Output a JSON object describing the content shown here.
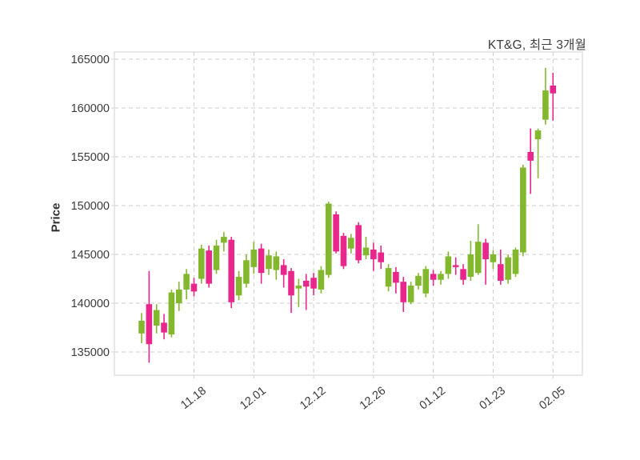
{
  "title": "KT&G, 최근 3개월",
  "chart_data": {
    "type": "candlestick",
    "title": "KT&G, 최근 3개월",
    "ylabel": "Price",
    "ylim": [
      133500,
      165800
    ],
    "yticks": [
      135000,
      140000,
      145000,
      150000,
      155000,
      160000,
      165000
    ],
    "xtick_labels": [
      "11.18",
      "12.01",
      "12.12",
      "12.26",
      "01.12",
      "01.23",
      "02.05"
    ],
    "xtick_indices": [
      7,
      15,
      23,
      31,
      39,
      47,
      55
    ],
    "grid": true,
    "legend": "none",
    "up_color": "#83b82e",
    "down_color": "#e8268c",
    "grid_color": "#cccccc",
    "spine_color": "#d9d9d9",
    "text_color": "#3b3b3b",
    "columns": [
      "open",
      "high",
      "low",
      "close"
    ],
    "ohlc": [
      [
        136900,
        139000,
        135900,
        138200
      ],
      [
        139900,
        143300,
        133900,
        135800
      ],
      [
        137700,
        139900,
        136900,
        139300
      ],
      [
        138000,
        138900,
        136300,
        137000
      ],
      [
        136800,
        141400,
        136500,
        141100
      ],
      [
        140000,
        142200,
        139200,
        141400
      ],
      [
        141400,
        143500,
        140400,
        143000
      ],
      [
        142000,
        142600,
        140700,
        141200
      ],
      [
        142500,
        146000,
        142000,
        145600
      ],
      [
        145400,
        145900,
        141600,
        142000
      ],
      [
        143400,
        146500,
        143000,
        145900
      ],
      [
        146200,
        147300,
        145300,
        146800
      ],
      [
        146500,
        146800,
        139500,
        140100
      ],
      [
        140800,
        143300,
        140300,
        142700
      ],
      [
        142000,
        145000,
        141600,
        144400
      ],
      [
        143700,
        146300,
        143000,
        145500
      ],
      [
        145600,
        146100,
        142000,
        143100
      ],
      [
        143500,
        145500,
        142900,
        144900
      ],
      [
        143400,
        145300,
        142400,
        144800
      ],
      [
        143900,
        144500,
        141600,
        142900
      ],
      [
        143300,
        143600,
        139000,
        140800
      ],
      [
        141500,
        142500,
        139600,
        141800
      ],
      [
        142300,
        143000,
        139300,
        141700
      ],
      [
        142600,
        143100,
        140800,
        141500
      ],
      [
        141400,
        143800,
        141000,
        143400
      ],
      [
        142900,
        150400,
        142600,
        150200
      ],
      [
        149100,
        149400,
        145100,
        145300
      ],
      [
        146900,
        147200,
        143500,
        143800
      ],
      [
        145600,
        147100,
        145100,
        146700
      ],
      [
        148000,
        148300,
        144100,
        144400
      ],
      [
        144900,
        146800,
        144500,
        145700
      ],
      [
        145500,
        146200,
        143300,
        144500
      ],
      [
        145200,
        145900,
        143500,
        144200
      ],
      [
        141700,
        144000,
        141200,
        143600
      ],
      [
        143200,
        143700,
        141000,
        142100
      ],
      [
        142200,
        142700,
        139100,
        140100
      ],
      [
        140100,
        142200,
        139900,
        141800
      ],
      [
        141800,
        143100,
        141400,
        142800
      ],
      [
        141000,
        143800,
        140600,
        143500
      ],
      [
        143000,
        143400,
        141800,
        142400
      ],
      [
        142400,
        143300,
        141900,
        143000
      ],
      [
        143000,
        145300,
        142500,
        144800
      ],
      [
        143900,
        144700,
        142900,
        143700
      ],
      [
        143500,
        144000,
        141900,
        142400
      ],
      [
        142700,
        146400,
        142300,
        145000
      ],
      [
        143100,
        148100,
        142900,
        146300
      ],
      [
        146200,
        146600,
        141900,
        144500
      ],
      [
        144200,
        145400,
        143500,
        145000
      ],
      [
        144000,
        145500,
        141900,
        142300
      ],
      [
        142400,
        145000,
        142000,
        144700
      ],
      [
        143000,
        145700,
        142700,
        145500
      ],
      [
        145200,
        154200,
        144800,
        153900
      ],
      [
        155500,
        157900,
        151200,
        154600
      ],
      [
        156800,
        157900,
        152800,
        157700
      ],
      [
        158800,
        164100,
        158300,
        161800
      ],
      [
        162300,
        163600,
        158700,
        161500
      ]
    ]
  }
}
